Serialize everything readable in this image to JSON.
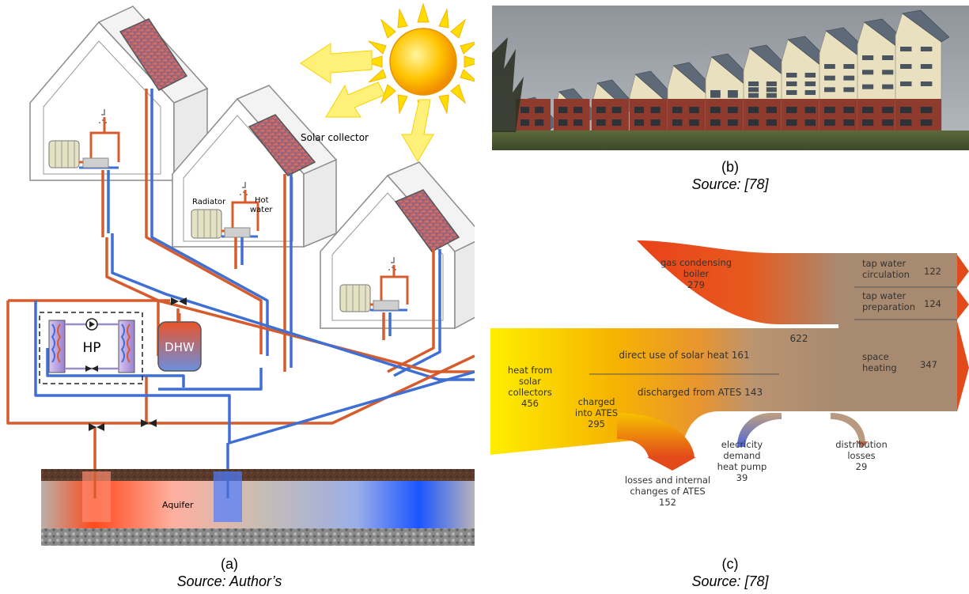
{
  "panel_a": {
    "labels": {
      "solar_collector": "Solar collector",
      "radiator": "Radiator",
      "hot_water_line1": "Hot",
      "hot_water_line2": "water",
      "hp": "HP",
      "dhw": "DHW",
      "aquifer": "Aquifer"
    },
    "caption_letter": "(a)",
    "caption_source": "Source: Author’s"
  },
  "panel_b": {
    "caption_letter": "(b)",
    "caption_source": "Source: [78]"
  },
  "panel_c": {
    "total": "622",
    "gas_boiler": {
      "l1": "gas condensing",
      "l2": "boiler",
      "value": "279"
    },
    "solar": {
      "l1": "heat from",
      "l2": "solar",
      "l3": "collectors",
      "value": "456"
    },
    "direct_use": "direct use of solar heat 161",
    "discharged": "discharged from ATES 143",
    "charged": {
      "l1": "charged",
      "l2": "into ATES",
      "value": "295"
    },
    "losses_ates": {
      "l1": "losses and internal",
      "l2": "changes of ATES",
      "value": "152"
    },
    "electricity": {
      "l1": "elecricity",
      "l2": "demand",
      "l3": "heat pump",
      "value": "39"
    },
    "distribution": {
      "l1": "distribution",
      "l2": "losses",
      "value": "29"
    },
    "tap_circ": {
      "l1": "tap water",
      "l2": "circulation",
      "value": "122"
    },
    "tap_prep": {
      "l1": "tap water",
      "l2": "preparation",
      "value": "124"
    },
    "space": {
      "l1": "space",
      "l2": "heating",
      "value": "347"
    },
    "caption_letter": "(c)",
    "caption_source": "Source: [78]"
  }
}
